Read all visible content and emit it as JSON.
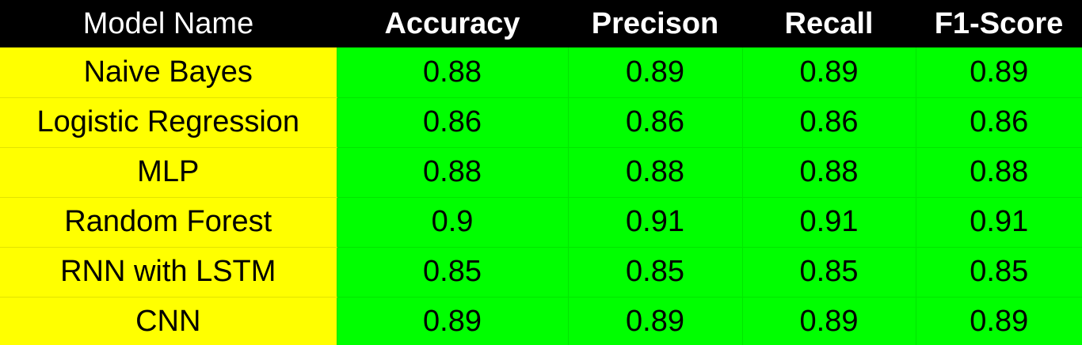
{
  "colors": {
    "header_bg": "#000000",
    "header_text": "#ffffff",
    "name_column_bg": "#ffff00",
    "metric_cells_bg": "#00ff00",
    "cell_text": "#000000"
  },
  "table": {
    "headers": [
      "Model Name",
      "Accuracy",
      "Precison",
      "Recall",
      "F1-Score"
    ],
    "rows": [
      [
        "Naive Bayes",
        "0.88",
        "0.89",
        "0.89",
        "0.89"
      ],
      [
        "Logistic Regression",
        "0.86",
        "0.86",
        "0.86",
        "0.86"
      ],
      [
        "MLP",
        "0.88",
        "0.88",
        "0.88",
        "0.88"
      ],
      [
        "Random Forest",
        "0.9",
        "0.91",
        "0.91",
        "0.91"
      ],
      [
        "RNN with LSTM",
        "0.85",
        "0.85",
        "0.85",
        "0.85"
      ],
      [
        "CNN",
        "0.89",
        "0.89",
        "0.89",
        "0.89"
      ]
    ]
  }
}
